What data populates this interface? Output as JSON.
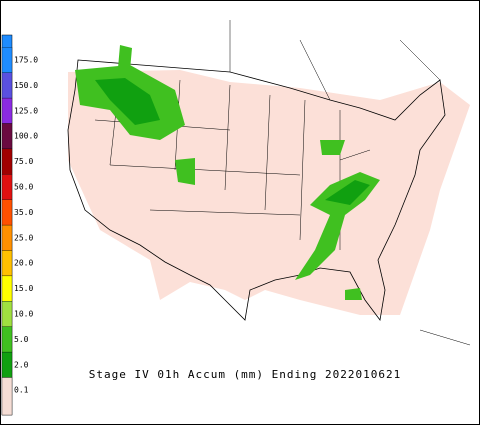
{
  "title": "Stage IV 01h Accum (mm) Ending 2022010621",
  "legend": {
    "entries": [
      {
        "label": "175.0",
        "color": "#1e8cff"
      },
      {
        "label": "150.0",
        "color": "#5a50e0"
      },
      {
        "label": "125.0",
        "color": "#8a2be2"
      },
      {
        "label": "100.0",
        "color": "#6a0a40"
      },
      {
        "label": "75.0",
        "color": "#a00000"
      },
      {
        "label": "50.0",
        "color": "#e01010"
      },
      {
        "label": "35.0",
        "color": "#ff5000"
      },
      {
        "label": "25.0",
        "color": "#ff9000"
      },
      {
        "label": "20.0",
        "color": "#ffc000"
      },
      {
        "label": "15.0",
        "color": "#ffff00"
      },
      {
        "label": "10.0",
        "color": "#a0e040"
      },
      {
        "label": "5.0",
        "color": "#40c020"
      },
      {
        "label": "2.0",
        "color": "#10a010"
      },
      {
        "label": "0.1",
        "color": "#f5ddd5"
      }
    ]
  }
}
